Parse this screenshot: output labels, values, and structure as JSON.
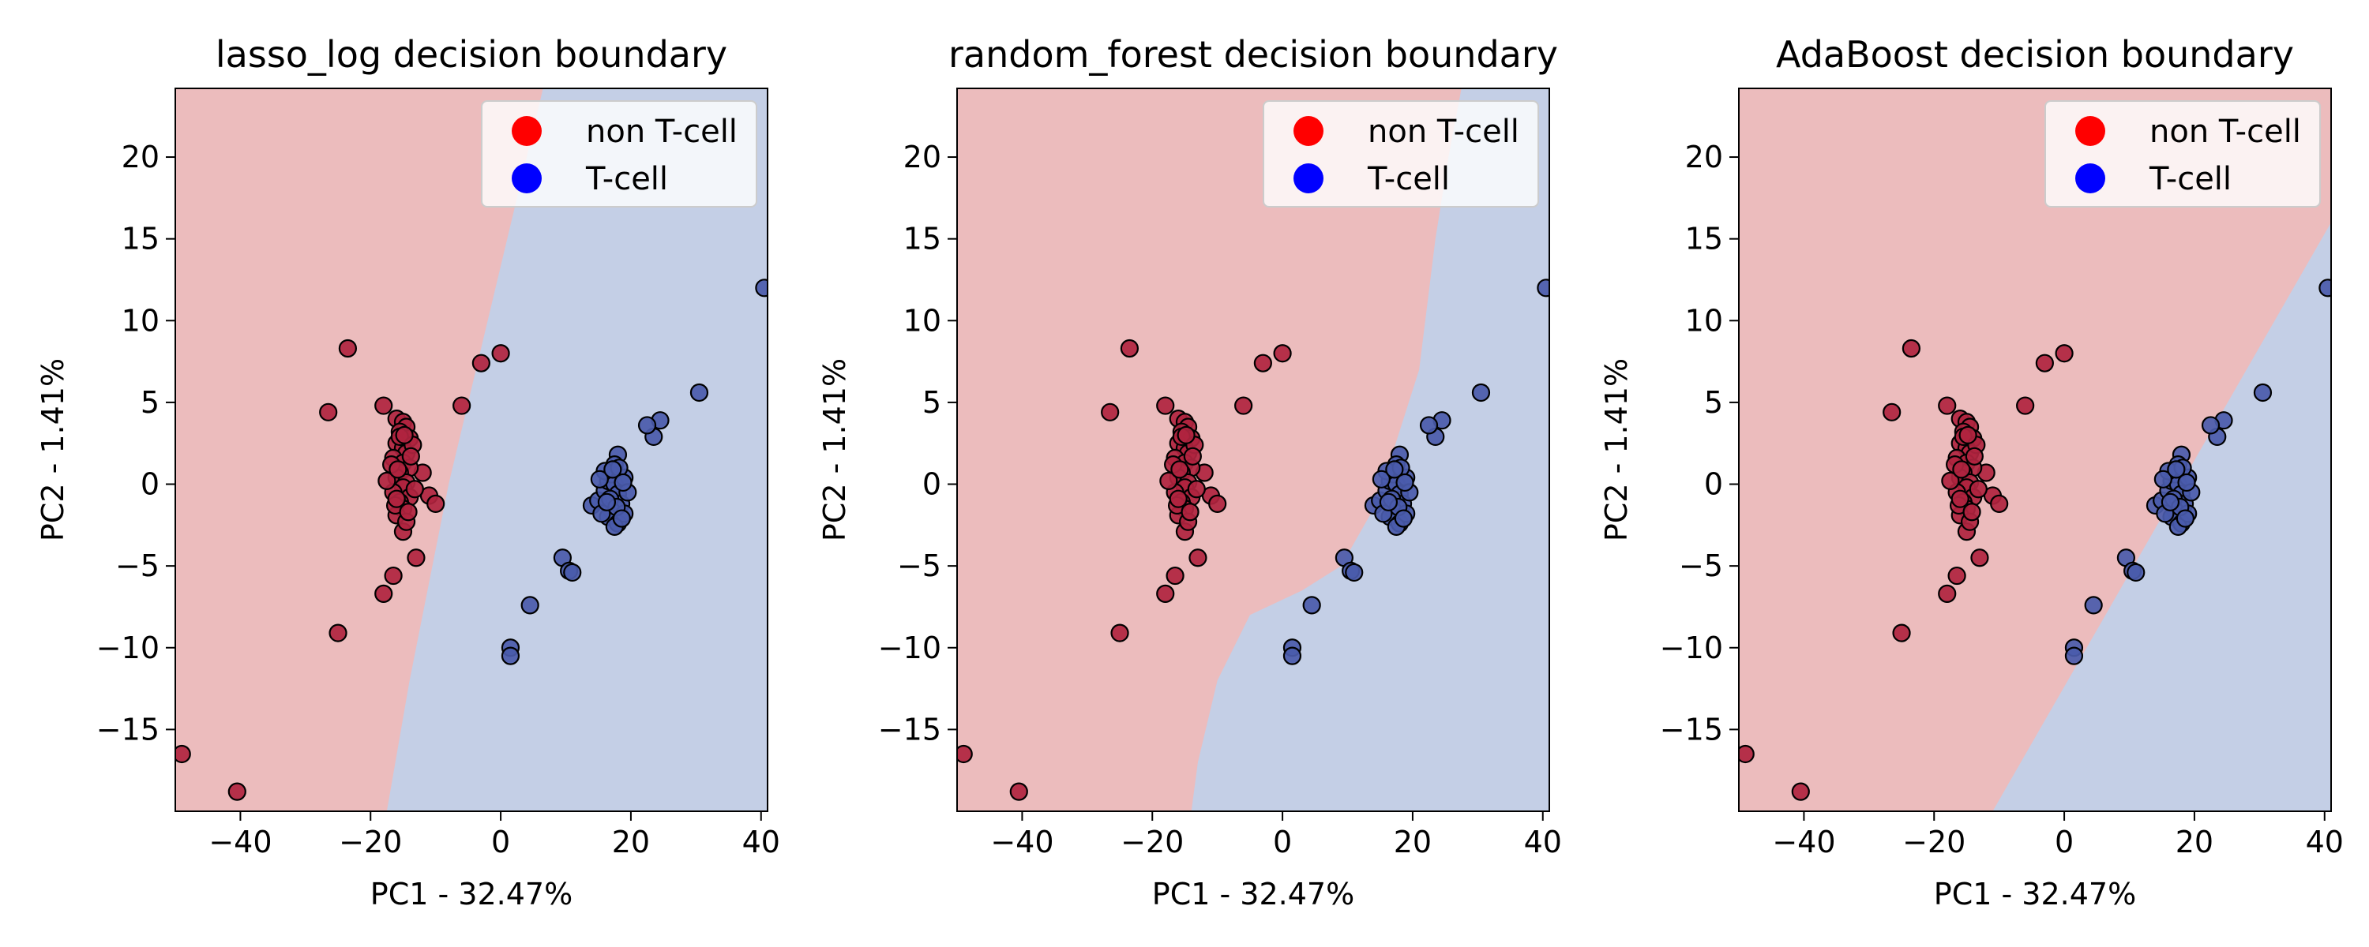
{
  "colors": {
    "region_non_tcell": "#ecbcbd",
    "region_tcell": "#c4cfe6",
    "point_non_tcell": "#b0243f",
    "point_tcell": "#4a5bab",
    "legend_marker_non_tcell": "#ff0000",
    "legend_marker_tcell": "#0000ff",
    "point_edge": "#000000"
  },
  "chart_data": [
    {
      "type": "scatter",
      "title": "lasso_log decision boundary",
      "xlabel": "PC1 - 32.47%",
      "ylabel": "PC2 - 1.41%",
      "xlim": [
        -50,
        41
      ],
      "ylim": [
        -20,
        24.2
      ],
      "xticks": [
        -40,
        -20,
        0,
        20,
        40
      ],
      "xtick_labels": [
        "−40",
        "−20",
        "0",
        "20",
        "40"
      ],
      "yticks": [
        -15,
        -10,
        -5,
        0,
        5,
        10,
        15,
        20
      ],
      "ytick_labels": [
        "−15",
        "−10",
        "−5",
        "0",
        "5",
        "10",
        "15",
        "20"
      ],
      "legend": {
        "position": "top-right",
        "entries": [
          "non T-cell",
          "T-cell"
        ]
      },
      "grid": false,
      "boundary": [
        [
          -17.5,
          -20
        ],
        [
          -14,
          -12
        ],
        [
          -8,
          0
        ],
        [
          -2,
          10
        ],
        [
          4,
          20
        ],
        [
          6.5,
          24.2
        ]
      ]
    },
    {
      "type": "scatter",
      "title": "random_forest decision boundary",
      "xlabel": "PC1 - 32.47%",
      "ylabel": "PC2 - 1.41%",
      "xlim": [
        -50,
        41
      ],
      "ylim": [
        -20,
        24.2
      ],
      "xticks": [
        -40,
        -20,
        0,
        20,
        40
      ],
      "xtick_labels": [
        "−40",
        "−20",
        "0",
        "20",
        "40"
      ],
      "yticks": [
        -15,
        -10,
        -5,
        0,
        5,
        10,
        15,
        20
      ],
      "ytick_labels": [
        "−15",
        "−10",
        "−5",
        "0",
        "5",
        "10",
        "15",
        "20"
      ],
      "legend": {
        "position": "top-right",
        "entries": [
          "non T-cell",
          "T-cell"
        ]
      },
      "grid": false,
      "boundary": [
        [
          -14,
          -20
        ],
        [
          -13,
          -17
        ],
        [
          -10,
          -12
        ],
        [
          -5,
          -8
        ],
        [
          3,
          -6.5
        ],
        [
          9,
          -5
        ],
        [
          14,
          -1.5
        ],
        [
          17,
          2
        ],
        [
          21,
          7
        ],
        [
          23.5,
          15
        ],
        [
          25.5,
          20
        ],
        [
          27.5,
          24.2
        ]
      ]
    },
    {
      "type": "scatter",
      "title": "AdaBoost decision boundary",
      "xlabel": "PC1 - 32.47%",
      "ylabel": "PC2 - 1.41%",
      "xlim": [
        -50,
        41
      ],
      "ylim": [
        -20,
        24.2
      ],
      "xticks": [
        -40,
        -20,
        0,
        20,
        40
      ],
      "xtick_labels": [
        "−40",
        "−20",
        "0",
        "20",
        "40"
      ],
      "yticks": [
        -15,
        -10,
        -5,
        0,
        5,
        10,
        15,
        20
      ],
      "ytick_labels": [
        "−15",
        "−10",
        "−5",
        "0",
        "5",
        "10",
        "15",
        "20"
      ],
      "legend": {
        "position": "top-right",
        "entries": [
          "non T-cell",
          "T-cell"
        ]
      },
      "grid": false,
      "boundary": [
        [
          -11,
          -20
        ],
        [
          41,
          16
        ]
      ]
    }
  ],
  "points": {
    "non_tcell": [
      [
        -49,
        -16.5
      ],
      [
        -40.5,
        -18.8
      ],
      [
        -26.5,
        4.4
      ],
      [
        -25,
        -9.1
      ],
      [
        -23.5,
        8.3
      ],
      [
        -18,
        -6.7
      ],
      [
        -16.5,
        -5.6
      ],
      [
        -18,
        4.8
      ],
      [
        -12,
        0.7
      ],
      [
        -11,
        -0.7
      ],
      [
        -10,
        -1.2
      ],
      [
        -13,
        -4.5
      ],
      [
        -15,
        -2.9
      ],
      [
        -6,
        4.8
      ],
      [
        -3,
        7.4
      ],
      [
        0,
        8
      ],
      [
        -16,
        4
      ],
      [
        -15,
        3.8
      ],
      [
        -14.5,
        3.5
      ],
      [
        -15.5,
        3.2
      ],
      [
        -14,
        2.8
      ],
      [
        -16,
        2.5
      ],
      [
        -15,
        2.2
      ],
      [
        -14.5,
        1.9
      ],
      [
        -16.5,
        1.6
      ],
      [
        -15,
        1.3
      ],
      [
        -14,
        1
      ],
      [
        -15.5,
        0.7
      ],
      [
        -16,
        0.4
      ],
      [
        -14.5,
        0.1
      ],
      [
        -15,
        -0.2
      ],
      [
        -16.5,
        -0.5
      ],
      [
        -14,
        -0.8
      ],
      [
        -15.5,
        -1.1
      ],
      [
        -15,
        -1.5
      ],
      [
        -16,
        -1.9
      ],
      [
        -14.5,
        -2.3
      ],
      [
        -15.5,
        2.9
      ],
      [
        -13.5,
        2.4
      ],
      [
        -16.8,
        1.2
      ],
      [
        -13.8,
        1.7
      ],
      [
        -17.5,
        0.2
      ],
      [
        -13.2,
        -0.3
      ],
      [
        -16.2,
        -1.3
      ],
      [
        -14.2,
        -1.7
      ],
      [
        -15.8,
        0.9
      ],
      [
        -14.8,
        3.0
      ],
      [
        -16.0,
        -0.9
      ]
    ],
    "tcell": [
      [
        40.5,
        12
      ],
      [
        30.5,
        5.6
      ],
      [
        24.5,
        3.9
      ],
      [
        23.5,
        2.9
      ],
      [
        22.5,
        3.6
      ],
      [
        18,
        1.8
      ],
      [
        17.5,
        1.2
      ],
      [
        9.5,
        -4.5
      ],
      [
        10.5,
        -5.3
      ],
      [
        11,
        -5.4
      ],
      [
        4.5,
        -7.4
      ],
      [
        1.5,
        -10
      ],
      [
        1.5,
        -10.5
      ],
      [
        14,
        -1.3
      ],
      [
        15,
        -1.0
      ],
      [
        16,
        -0.4
      ],
      [
        16.5,
        0.2
      ],
      [
        17,
        0.6
      ],
      [
        17.5,
        0
      ],
      [
        18,
        -0.6
      ],
      [
        18.5,
        -1.2
      ],
      [
        17,
        -1.6
      ],
      [
        16.5,
        -2.0
      ],
      [
        18,
        -2.4
      ],
      [
        19,
        -1.8
      ],
      [
        19,
        0.4
      ],
      [
        16,
        0.8
      ],
      [
        15.5,
        -1.8
      ],
      [
        17.5,
        -2.6
      ],
      [
        18.2,
        1.0
      ],
      [
        16.8,
        -0.9
      ],
      [
        15.2,
        0.3
      ],
      [
        19.5,
        -0.5
      ],
      [
        17.8,
        -1.4
      ],
      [
        18.6,
        -2.1
      ],
      [
        16.3,
        -1.1
      ],
      [
        17.2,
        0.9
      ],
      [
        18.8,
        0.1
      ]
    ]
  }
}
